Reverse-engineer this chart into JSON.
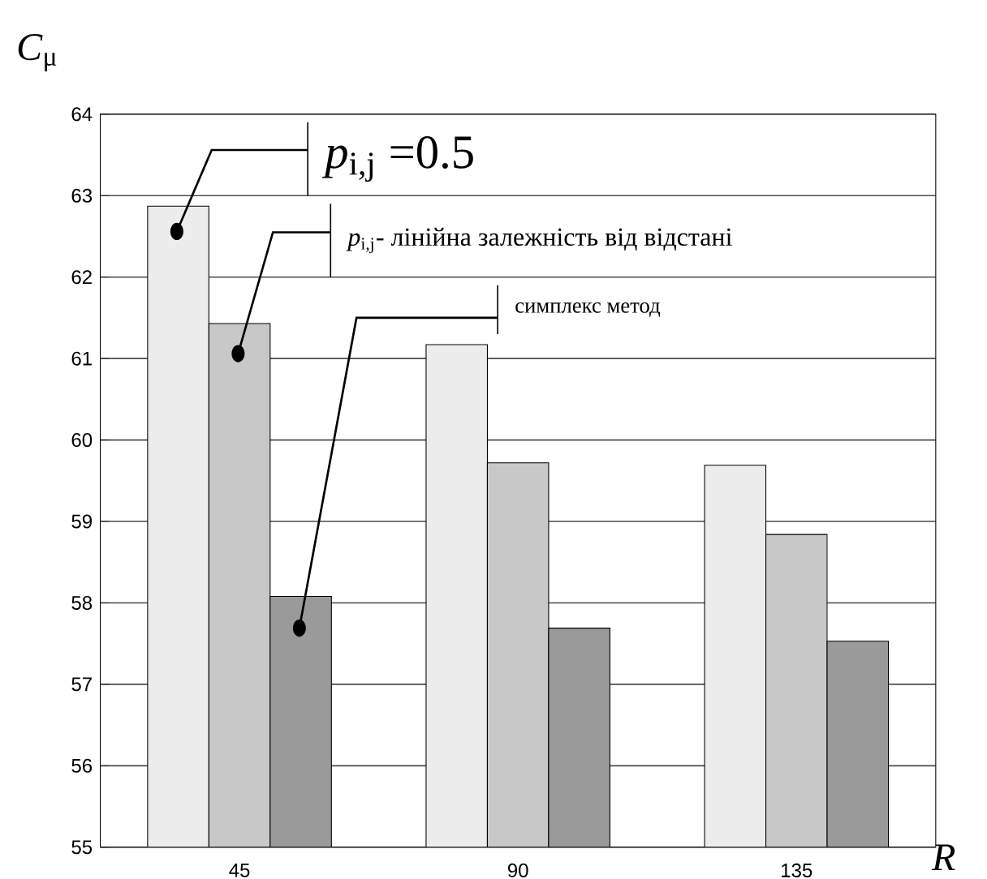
{
  "chart_data": {
    "type": "bar",
    "xlabel": "*R*",
    "ylabel": "*C*$_{μ}$",
    "categories": [
      "45",
      "90",
      "135"
    ],
    "series": [
      {
        "name": "*p*$_{i,j}$ =0.5",
        "color": "#ececec",
        "values": [
          62.87,
          61.17,
          59.69
        ]
      },
      {
        "name": "*p*$_{i,j}$- лінійна залежність від відстані",
        "color": "#c8c8c8",
        "values": [
          61.43,
          59.72,
          58.84
        ]
      },
      {
        "name": "симплекс метод",
        "color": "#9a9a9a",
        "values": [
          58.08,
          57.69,
          57.53
        ]
      }
    ],
    "ylim": [
      55,
      64
    ],
    "yticks": [
      55,
      56,
      57,
      58,
      59,
      60,
      61,
      62,
      63,
      64
    ],
    "grid": "y",
    "legend": "top left"
  }
}
